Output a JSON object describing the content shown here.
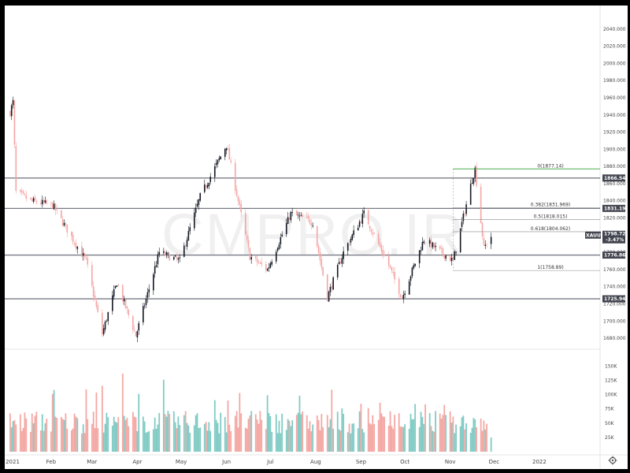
{
  "chart_data": {
    "type": "candlestick",
    "symbol": "XAUUSD",
    "last_price": "1798.725",
    "change_percent": "-3.47%",
    "watermark": "CMPRO.IR",
    "y_axis": {
      "range": [
        1670,
        2060
      ],
      "ticks": [
        "2040.000",
        "2020.000",
        "2000.000",
        "1980.000",
        "1960.000",
        "1940.000",
        "1920.000",
        "1900.000",
        "1880.000",
        "1860.000",
        "1840.000",
        "1820.000",
        "1800.000",
        "1780.000",
        "1760.000",
        "1740.000",
        "1720.000",
        "1700.000",
        "1680.000"
      ]
    },
    "x_axis": {
      "ticks": [
        "2021",
        "Feb",
        "Mar",
        "Apr",
        "May",
        "Jun",
        "Jul",
        "Aug",
        "Sep",
        "Oct",
        "Nov",
        "Dec",
        "2022"
      ]
    },
    "levels": [
      {
        "label": "1866.540",
        "value": 1866.54
      },
      {
        "label": "1831.190",
        "value": 1831.19
      },
      {
        "label": "1776.860",
        "value": 1776.86
      },
      {
        "label": "1725.940",
        "value": 1725.94
      }
    ],
    "fibonacci": [
      {
        "label": "0(1877.14)",
        "value": 1877.14
      },
      {
        "label": "0.382(1831.969)",
        "value": 1831.969
      },
      {
        "label": "0.5(1818.015)",
        "value": 1818.015
      },
      {
        "label": "0.618(1804.062)",
        "value": 1804.062
      },
      {
        "label": "1(1758.89)",
        "value": 1758.89
      }
    ],
    "price_key_points": [
      {
        "date": "2021-01-04",
        "close": 1943
      },
      {
        "date": "2021-01-06",
        "close": 1955
      },
      {
        "date": "2021-01-08",
        "close": 1850
      },
      {
        "date": "2021-01-18",
        "close": 1840
      },
      {
        "date": "2021-02-02",
        "close": 1835
      },
      {
        "date": "2021-02-16",
        "close": 1795
      },
      {
        "date": "2021-02-25",
        "close": 1770
      },
      {
        "date": "2021-03-08",
        "close": 1685
      },
      {
        "date": "2021-03-18",
        "close": 1745
      },
      {
        "date": "2021-03-31",
        "close": 1683
      },
      {
        "date": "2021-04-16",
        "close": 1780
      },
      {
        "date": "2021-04-30",
        "close": 1770
      },
      {
        "date": "2021-05-14",
        "close": 1845
      },
      {
        "date": "2021-06-01",
        "close": 1905
      },
      {
        "date": "2021-06-17",
        "close": 1775
      },
      {
        "date": "2021-06-29",
        "close": 1760
      },
      {
        "date": "2021-07-15",
        "close": 1825
      },
      {
        "date": "2021-07-30",
        "close": 1815
      },
      {
        "date": "2021-08-09",
        "close": 1728
      },
      {
        "date": "2021-08-20",
        "close": 1780
      },
      {
        "date": "2021-09-03",
        "close": 1825
      },
      {
        "date": "2021-09-20",
        "close": 1765
      },
      {
        "date": "2021-09-29",
        "close": 1727
      },
      {
        "date": "2021-10-14",
        "close": 1795
      },
      {
        "date": "2021-11-03",
        "close": 1770
      },
      {
        "date": "2021-11-16",
        "close": 1865
      },
      {
        "date": "2021-11-18",
        "close": 1877
      },
      {
        "date": "2021-11-24",
        "close": 1785
      },
      {
        "date": "2021-11-29",
        "close": 1798.725
      }
    ],
    "volume_axis": {
      "range": [
        0,
        170000
      ],
      "ticks": [
        "150K",
        "125K",
        "100K",
        "75K",
        "50K",
        "25K"
      ]
    },
    "volume_key_points": [
      {
        "date": "2021-01-08",
        "value": 100000
      },
      {
        "date": "2021-02-26",
        "value": 125000
      },
      {
        "date": "2021-03-08",
        "value": 148000
      },
      {
        "date": "2021-05-28",
        "value": 108000
      },
      {
        "date": "2021-08-09",
        "value": 111000
      },
      {
        "date": "2021-11-18",
        "value": 75000
      },
      {
        "date": "2021-11-29",
        "value": 25000
      }
    ],
    "colors": {
      "up": "#131722",
      "down": "#f5a5a5",
      "level_line": "#787b86",
      "fib_top": "#4caf50",
      "vol_up": "#80cbc4",
      "vol_down": "#f4a7a3",
      "badge": "#42454f"
    },
    "settings_icon": "gear-icon"
  }
}
